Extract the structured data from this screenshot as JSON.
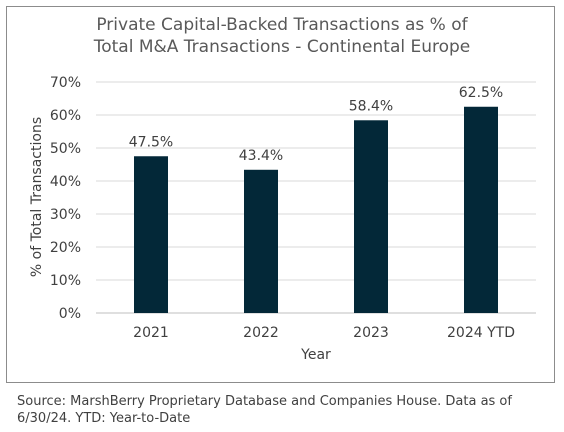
{
  "chart_data": {
    "type": "bar",
    "title_lines": [
      "Private Capital-Backed Transactions as % of",
      "Total M&A Transactions - Continental Europe"
    ],
    "categories": [
      "2021",
      "2022",
      "2023",
      "2024 YTD"
    ],
    "values": [
      47.5,
      43.4,
      58.4,
      62.5
    ],
    "data_labels": [
      "47.5%",
      "43.4%",
      "58.4%",
      "62.5%"
    ],
    "xlabel": "Year",
    "ylabel": "% of Total Transactions",
    "ylim": [
      0,
      70
    ],
    "yticks": [
      "0%",
      "10%",
      "20%",
      "30%",
      "40%",
      "50%",
      "60%",
      "70%"
    ],
    "bar_color": "#032838",
    "grid": true,
    "legend": "none"
  },
  "source_note": "Source: MarshBerry Proprietary Database and Companies House. Data as of 6/30/24. YTD: Year-to-Date"
}
